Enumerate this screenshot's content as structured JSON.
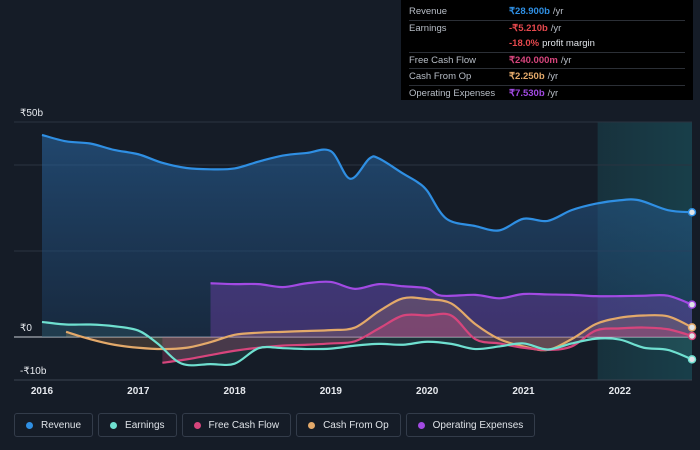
{
  "tooltip": {
    "revenue": {
      "label": "Revenue",
      "value": "₹28.900b",
      "unit": "/yr"
    },
    "earnings": {
      "label": "Earnings",
      "value": "-₹5.210b",
      "unit": "/yr"
    },
    "margin": {
      "value": "-18.0%",
      "unit": "profit margin"
    },
    "fcf": {
      "label": "Free Cash Flow",
      "value": "₹240.000m",
      "unit": "/yr"
    },
    "cfo": {
      "label": "Cash From Op",
      "value": "₹2.250b",
      "unit": "/yr"
    },
    "opex": {
      "label": "Operating Expenses",
      "value": "₹7.530b",
      "unit": "/yr"
    }
  },
  "legend": [
    {
      "label": "Revenue",
      "color": "#2f8fe3"
    },
    {
      "label": "Earnings",
      "color": "#6fe0d0"
    },
    {
      "label": "Free Cash Flow",
      "color": "#d6457c"
    },
    {
      "label": "Cash From Op",
      "color": "#e3a96a"
    },
    {
      "label": "Operating Expenses",
      "color": "#a24ae3"
    }
  ],
  "chart_data": {
    "type": "area",
    "y_tick_labels": [
      "₹50b",
      "₹0",
      "-₹10b"
    ],
    "ylim": [
      -10,
      50
    ],
    "x_tick_labels": [
      "2016",
      "2017",
      "2018",
      "2019",
      "2020",
      "2021",
      "2022"
    ],
    "xlim": [
      2016,
      2022.75
    ],
    "highlight_start": 2021.77,
    "series": [
      {
        "name": "Revenue",
        "color": "#2f8fe3",
        "x": [
          2016.0,
          2016.25,
          2016.5,
          2016.75,
          2017.0,
          2017.25,
          2017.5,
          2017.75,
          2018.0,
          2018.25,
          2018.5,
          2018.75,
          2019.0,
          2019.2,
          2019.4,
          2019.5,
          2019.75,
          2019.9,
          2020.0,
          2020.2,
          2020.5,
          2020.75,
          2021.0,
          2021.25,
          2021.5,
          2021.75,
          2022.0,
          2022.2,
          2022.5,
          2022.75
        ],
        "y": [
          47,
          45.5,
          45,
          43.5,
          42.5,
          40.5,
          39.3,
          39,
          39.2,
          40.8,
          42.2,
          42.8,
          43.2,
          36.8,
          41.5,
          41.5,
          38,
          36,
          34,
          27.5,
          25.8,
          24.8,
          27.5,
          27,
          29.5,
          31,
          31.8,
          31.8,
          29.5,
          29
        ]
      },
      {
        "name": "Earnings",
        "color": "#6fe0d0",
        "x": [
          2016.0,
          2016.25,
          2016.5,
          2016.75,
          2017.0,
          2017.2,
          2017.45,
          2017.75,
          2018.0,
          2018.25,
          2018.5,
          2018.75,
          2019.0,
          2019.25,
          2019.5,
          2019.75,
          2020.0,
          2020.25,
          2020.5,
          2020.75,
          2021.0,
          2021.25,
          2021.5,
          2021.75,
          2022.0,
          2022.25,
          2022.5,
          2022.75
        ],
        "y": [
          3.5,
          2.9,
          2.9,
          2.5,
          1.5,
          -1.5,
          -6.2,
          -6.3,
          -6.2,
          -2.6,
          -2.6,
          -2.8,
          -2.7,
          -2.0,
          -1.6,
          -1.8,
          -1.1,
          -1.6,
          -2.8,
          -2.2,
          -1.5,
          -2.9,
          -1.5,
          -0.4,
          -0.6,
          -2.5,
          -3.0,
          -5.2
        ]
      },
      {
        "name": "Free Cash Flow",
        "color": "#d6457c",
        "x": [
          2017.25,
          2017.5,
          2017.75,
          2018.0,
          2018.25,
          2018.5,
          2018.75,
          2019.0,
          2019.25,
          2019.5,
          2019.75,
          2020.0,
          2020.25,
          2020.5,
          2020.75,
          2021.0,
          2021.25,
          2021.5,
          2021.75,
          2022.0,
          2022.25,
          2022.5,
          2022.75
        ],
        "y": [
          -6.0,
          -5.2,
          -4.2,
          -3.2,
          -2.5,
          -2.0,
          -1.8,
          -1.5,
          -1.0,
          2.0,
          5.0,
          5.0,
          5.0,
          -0.5,
          -1.5,
          -2.5,
          -3.0,
          -2.2,
          1.5,
          2.0,
          2.2,
          1.8,
          0.24
        ]
      },
      {
        "name": "Cash From Op",
        "color": "#e3a96a",
        "x": [
          2016.25,
          2016.5,
          2016.75,
          2017.0,
          2017.25,
          2017.5,
          2017.75,
          2018.0,
          2018.25,
          2018.5,
          2018.75,
          2019.0,
          2019.25,
          2019.5,
          2019.75,
          2020.0,
          2020.25,
          2020.5,
          2020.75,
          2021.0,
          2021.25,
          2021.5,
          2021.75,
          2022.0,
          2022.25,
          2022.5,
          2022.75
        ],
        "y": [
          1.2,
          -0.5,
          -1.8,
          -2.5,
          -2.8,
          -2.5,
          -1.2,
          0.5,
          1.0,
          1.2,
          1.4,
          1.6,
          2.2,
          6.0,
          9.0,
          8.8,
          7.8,
          3.0,
          -0.5,
          -2.2,
          -3.0,
          -0.5,
          3.0,
          4.5,
          5.0,
          4.8,
          2.25
        ]
      },
      {
        "name": "Operating Expenses",
        "color": "#a24ae3",
        "x": [
          2017.75,
          2018.0,
          2018.25,
          2018.5,
          2018.75,
          2019.0,
          2019.25,
          2019.5,
          2019.75,
          2020.0,
          2020.15,
          2020.5,
          2020.75,
          2021.0,
          2021.25,
          2021.5,
          2021.75,
          2022.0,
          2022.25,
          2022.5,
          2022.75
        ],
        "y": [
          12.5,
          12.3,
          12.3,
          11.6,
          12.5,
          12.8,
          11.2,
          12.3,
          11.8,
          11.3,
          9.6,
          9.8,
          9.0,
          10.0,
          9.9,
          9.8,
          9.5,
          9.5,
          9.6,
          9.6,
          7.53
        ]
      }
    ]
  }
}
